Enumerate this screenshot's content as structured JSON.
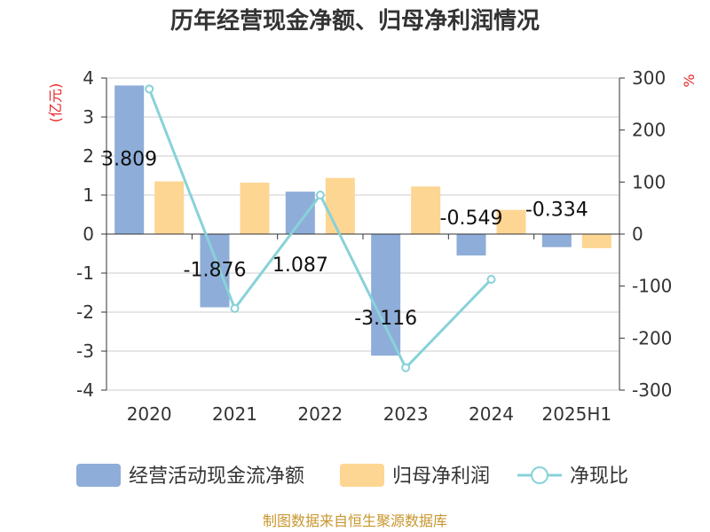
{
  "chart_data": {
    "type": "bar",
    "title": "历年经营现金净额、归母净利润情况",
    "categories": [
      "2020",
      "2021",
      "2022",
      "2023",
      "2024",
      "2025H1"
    ],
    "series": [
      {
        "name": "经营活动现金流净额",
        "type": "bar",
        "axis": "left",
        "color": "#8eadd9",
        "values": [
          3.809,
          -1.876,
          1.087,
          -3.116,
          -0.549,
          -0.334
        ],
        "labels": [
          "3.809",
          "-1.876",
          "1.087",
          "-3.116",
          "-0.549",
          "-0.334"
        ]
      },
      {
        "name": "归母净利润",
        "type": "bar",
        "axis": "left",
        "color": "#fdd693",
        "values": [
          1.35,
          1.32,
          1.44,
          1.22,
          0.62,
          -0.36
        ]
      },
      {
        "name": "净现比",
        "type": "line",
        "axis": "right",
        "color": "#88d2d8",
        "values": [
          279,
          -143,
          75,
          -257,
          -87,
          null
        ]
      }
    ],
    "left_axis": {
      "unit": "(亿元)",
      "ylim": [
        -4,
        4
      ],
      "ticks": [
        -4,
        -3,
        -2,
        -1,
        0,
        1,
        2,
        3,
        4
      ]
    },
    "right_axis": {
      "unit": "%",
      "ylim": [
        -300,
        300
      ],
      "ticks": [
        -300,
        -200,
        -100,
        0,
        100,
        200,
        300
      ]
    },
    "grid": true,
    "legend_position": "bottom"
  },
  "source_text": "制图数据来自恒生聚源数据库",
  "colors": {
    "bar1": "#8eadd9",
    "bar2": "#fdd693",
    "line": "#88d2d8",
    "grid": "#cccccc",
    "axis": "#333333",
    "unit": "#e8262a",
    "source": "#c8962e"
  }
}
